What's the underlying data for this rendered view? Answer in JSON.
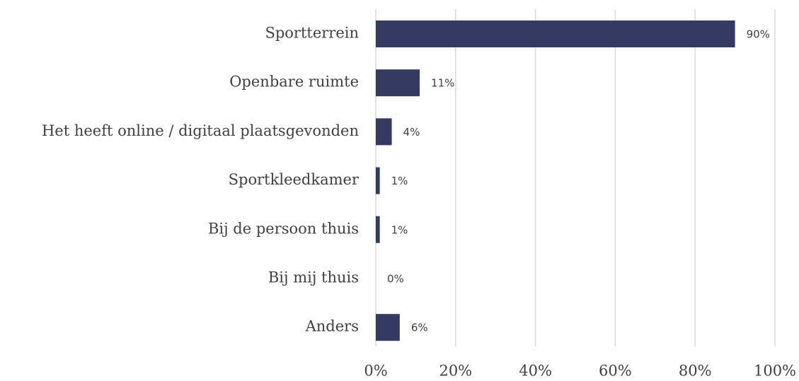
{
  "chart_data": {
    "type": "bar",
    "orientation": "horizontal",
    "categories": [
      "Sportterrein",
      "Openbare ruimte",
      "Het heeft online / digitaal plaatsgevonden",
      "Sportkleedkamer",
      "Bij de persoon thuis",
      "Bij mij thuis",
      "Anders"
    ],
    "values": [
      90,
      11,
      4,
      1,
      1,
      0,
      6
    ],
    "value_labels": [
      "90%",
      "11%",
      "4%",
      "1%",
      "1%",
      "0%",
      "6%"
    ],
    "color": "#353a62",
    "xlim": [
      0,
      100
    ],
    "xticks": [
      {
        "value": 0,
        "label": "0%"
      },
      {
        "value": 20,
        "label": "20%"
      },
      {
        "value": 40,
        "label": "40%"
      },
      {
        "value": 60,
        "label": "60%"
      },
      {
        "value": 80,
        "label": "80%"
      },
      {
        "value": 100,
        "label": "100%"
      }
    ],
    "grid": true
  }
}
